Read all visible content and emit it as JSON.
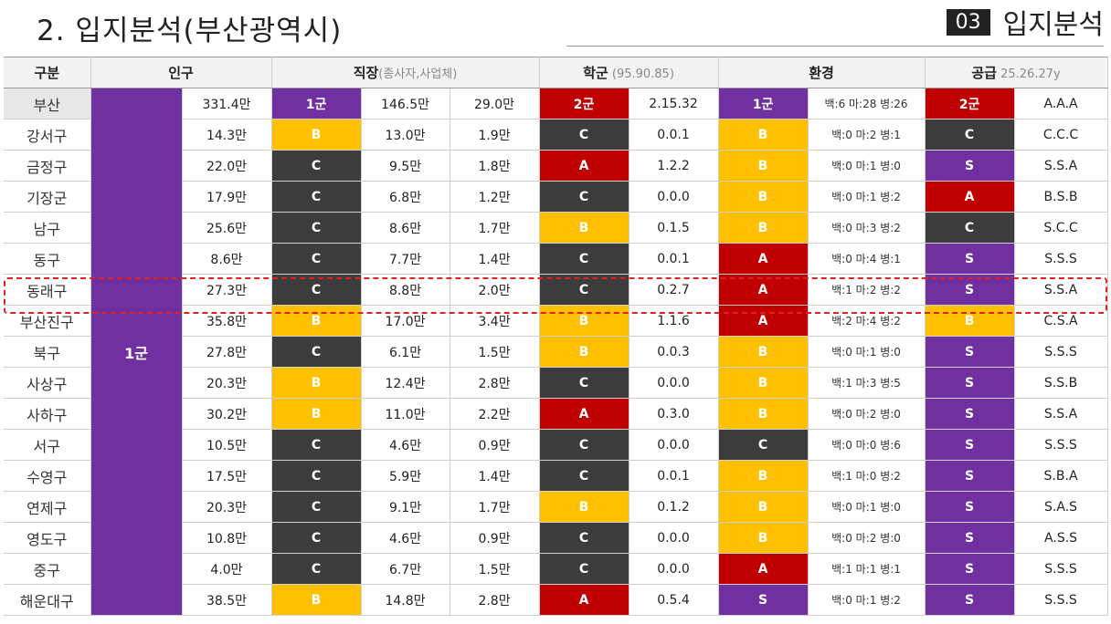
{
  "header": {
    "title": "2. 입지분석(부산광역시)",
    "section_num": "03",
    "section_label": "입지분석"
  },
  "columns": {
    "region": "구분",
    "population": "인구",
    "work": "직장",
    "work_sub": "(종사자,사업체)",
    "school": "학군",
    "school_sub": " (95.90.85)",
    "environment": "환경",
    "supply": "공급",
    "supply_sub": " 25.26.27y"
  },
  "pop_group_label": "1군",
  "busan": {
    "region": "부산",
    "pop": "331.4만",
    "work_grade": "1군",
    "workers": "146.5만",
    "biz": "29.0만",
    "school_grade": "2군",
    "school_val": "2.15.32",
    "env_grade": "1군",
    "env_val": "백:6 마:28 병:26",
    "supply_grade": "2군",
    "supply_val": "A.A.A"
  },
  "rows": [
    {
      "region": "강서구",
      "pop": "14.3만",
      "wg": "B",
      "workers": "13.0만",
      "biz": "1.9만",
      "sg": "C",
      "sv": "0.0.1",
      "eg": "B",
      "ev": "백:0 마:2 병:1",
      "pg": "C",
      "pv": "C.C.C"
    },
    {
      "region": "금정구",
      "pop": "22.0만",
      "wg": "C",
      "workers": "9.5만",
      "biz": "1.8만",
      "sg": "A",
      "sv": "1.2.2",
      "eg": "B",
      "ev": "백:0 마:1 병:0",
      "pg": "S",
      "pv": "S.S.A"
    },
    {
      "region": "기장군",
      "pop": "17.9만",
      "wg": "C",
      "workers": "6.8만",
      "biz": "1.2만",
      "sg": "C",
      "sv": "0.0.0",
      "eg": "B",
      "ev": "백:0 마:1 병:2",
      "pg": "A",
      "pv": "B.S.B"
    },
    {
      "region": "남구",
      "pop": "25.6만",
      "wg": "C",
      "workers": "8.6만",
      "biz": "1.7만",
      "sg": "B",
      "sv": "0.1.5",
      "eg": "B",
      "ev": "백:0 마:3 병:2",
      "pg": "C",
      "pv": "S.C.C"
    },
    {
      "region": "동구",
      "pop": "8.6만",
      "wg": "C",
      "workers": "7.7만",
      "biz": "1.4만",
      "sg": "C",
      "sv": "0.0.1",
      "eg": "A",
      "ev": "백:0 마:4 병:1",
      "pg": "S",
      "pv": "S.S.S"
    },
    {
      "region": "동래구",
      "pop": "27.3만",
      "wg": "C",
      "workers": "8.8만",
      "biz": "2.0만",
      "sg": "C",
      "sv": "0.2.7",
      "eg": "A",
      "ev": "백:1 마:2 병:2",
      "pg": "S",
      "pv": "S.S.A"
    },
    {
      "region": "부산진구",
      "pop": "35.8만",
      "wg": "B",
      "workers": "17.0만",
      "biz": "3.4만",
      "sg": "B",
      "sv": "1.1.6",
      "eg": "A",
      "ev": "백:2 마:4 병:2",
      "pg": "B",
      "pv": "C.S.A"
    },
    {
      "region": "북구",
      "pop": "27.8만",
      "wg": "C",
      "workers": "6.1만",
      "biz": "1.5만",
      "sg": "B",
      "sv": "0.0.3",
      "eg": "B",
      "ev": "백:0 마:1 병:0",
      "pg": "S",
      "pv": "S.S.S"
    },
    {
      "region": "사상구",
      "pop": "20.3만",
      "wg": "B",
      "workers": "12.4만",
      "biz": "2.8만",
      "sg": "C",
      "sv": "0.0.0",
      "eg": "B",
      "ev": "백:1 마:3 병:5",
      "pg": "S",
      "pv": "S.S.B"
    },
    {
      "region": "사하구",
      "pop": "30.2만",
      "wg": "B",
      "workers": "11.0만",
      "biz": "2.2만",
      "sg": "A",
      "sv": "0.3.0",
      "eg": "B",
      "ev": "백:0 마:2 병:0",
      "pg": "S",
      "pv": "S.S.A"
    },
    {
      "region": "서구",
      "pop": "10.5만",
      "wg": "C",
      "workers": "4.6만",
      "biz": "0.9만",
      "sg": "C",
      "sv": "0.0.0",
      "eg": "C",
      "ev": "백:0 마:0 병:6",
      "pg": "S",
      "pv": "S.S.S"
    },
    {
      "region": "수영구",
      "pop": "17.5만",
      "wg": "C",
      "workers": "5.9만",
      "biz": "1.4만",
      "sg": "C",
      "sv": "0.0.1",
      "eg": "B",
      "ev": "백:1 마:0 병:2",
      "pg": "S",
      "pv": "S.B.A"
    },
    {
      "region": "연제구",
      "pop": "20.3만",
      "wg": "C",
      "workers": "9.1만",
      "biz": "1.7만",
      "sg": "B",
      "sv": "0.1.2",
      "eg": "B",
      "ev": "백:0 마:1 병:0",
      "pg": "S",
      "pv": "S.A.S"
    },
    {
      "region": "영도구",
      "pop": "10.8만",
      "wg": "C",
      "workers": "4.6만",
      "biz": "0.9만",
      "sg": "C",
      "sv": "0.0.0",
      "eg": "B",
      "ev": "백:0 마:2 병:0",
      "pg": "S",
      "pv": "A.S.S"
    },
    {
      "region": "중구",
      "pop": "4.0만",
      "wg": "C",
      "workers": "6.7만",
      "biz": "1.5만",
      "sg": "C",
      "sv": "0.0.0",
      "eg": "A",
      "ev": "백:1 마:1 병:1",
      "pg": "S",
      "pv": "S.S.S"
    },
    {
      "region": "해운대구",
      "pop": "38.5만",
      "wg": "B",
      "workers": "14.8만",
      "biz": "2.8만",
      "sg": "A",
      "sv": "0.5.4",
      "eg": "S",
      "ev": "백:0 마:1 병:2",
      "pg": "S",
      "pv": "S.S.S"
    }
  ],
  "colors": {
    "A": "#c00000",
    "B": "#ffc000",
    "C": "#3c3c3c",
    "S": "#7030a0",
    "highlight": "#e02020"
  }
}
